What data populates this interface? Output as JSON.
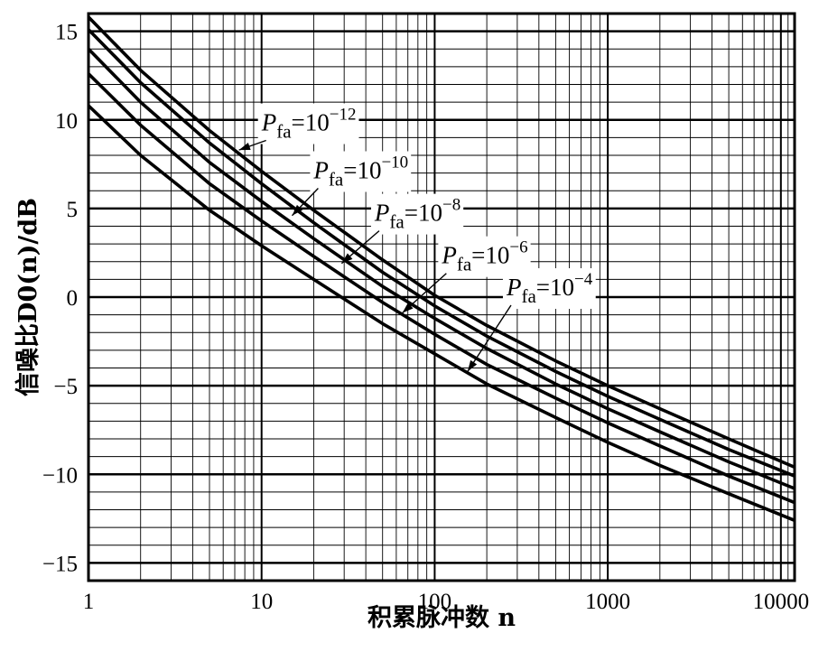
{
  "chart_data": {
    "type": "line",
    "title": "",
    "xlabel": "积累脉冲数 n",
    "ylabel": "信噪比D0(n)/dB",
    "x_scale": "log",
    "xlim": [
      1,
      12000
    ],
    "ylim": [
      -16,
      16
    ],
    "grid": true,
    "x_ticks": [
      {
        "value": 1,
        "label": "1"
      },
      {
        "value": 10,
        "label": "10"
      },
      {
        "value": 100,
        "label": "100"
      },
      {
        "value": 1000,
        "label": "1000"
      },
      {
        "value": 10000,
        "label": "10000"
      }
    ],
    "y_ticks": [
      {
        "value": 15,
        "label": "15"
      },
      {
        "value": 10,
        "label": "10"
      },
      {
        "value": 5,
        "label": "5"
      },
      {
        "value": 0,
        "label": "0"
      },
      {
        "value": -5,
        "label": "−5"
      },
      {
        "value": -10,
        "label": "−10"
      },
      {
        "value": -15,
        "label": "−15"
      }
    ],
    "x": [
      1,
      2,
      5,
      10,
      20,
      50,
      100,
      200,
      500,
      1000,
      2000,
      5000,
      12000
    ],
    "series": [
      {
        "exp": "−12",
        "values": [
          15.8,
          12.8,
          9.4,
          7.1,
          4.9,
          2.1,
          0.1,
          -1.6,
          -3.6,
          -5.0,
          -6.3,
          -8.0,
          -9.6
        ]
      },
      {
        "exp": "−10",
        "values": [
          15.1,
          12.1,
          8.7,
          6.4,
          4.2,
          1.4,
          -0.5,
          -2.2,
          -4.2,
          -5.6,
          -6.9,
          -8.6,
          -10.1
        ]
      },
      {
        "exp": "−8",
        "values": [
          14.0,
          11.0,
          7.6,
          5.4,
          3.3,
          0.6,
          -1.2,
          -2.9,
          -4.9,
          -6.3,
          -7.6,
          -9.3,
          -10.8
        ]
      },
      {
        "exp": "−6",
        "values": [
          12.6,
          9.7,
          6.4,
          4.3,
          2.3,
          -0.3,
          -2.1,
          -3.8,
          -5.7,
          -7.1,
          -8.4,
          -10.1,
          -11.6
        ]
      },
      {
        "exp": "−4",
        "values": [
          10.8,
          8.0,
          4.9,
          2.9,
          1.0,
          -1.5,
          -3.2,
          -4.9,
          -6.8,
          -8.2,
          -9.5,
          -11.1,
          -12.6
        ]
      }
    ],
    "annotations": [
      {
        "base": "P",
        "sub": "fa",
        "eq": "=10",
        "exp": "−12",
        "at": [
          10,
          9.4
        ],
        "points_to": [
          7.4,
          8.3
        ]
      },
      {
        "base": "P",
        "sub": "fa",
        "eq": "=10",
        "exp": "−10",
        "at": [
          20,
          6.7
        ],
        "points_to": [
          15,
          4.6
        ]
      },
      {
        "base": "P",
        "sub": "fa",
        "eq": "=10",
        "exp": "−8",
        "at": [
          45,
          4.3
        ],
        "points_to": [
          29,
          1.9
        ]
      },
      {
        "base": "P",
        "sub": "fa",
        "eq": "=10",
        "exp": "−6",
        "at": [
          110,
          1.9
        ],
        "points_to": [
          65,
          -0.9
        ]
      },
      {
        "base": "P",
        "sub": "fa",
        "eq": "=10",
        "exp": "−4",
        "at": [
          260,
          0.1
        ],
        "points_to": [
          155,
          -4.2
        ]
      }
    ],
    "colors": {
      "line": "#000000",
      "grid": "#000000",
      "background": "#ffffff"
    }
  }
}
